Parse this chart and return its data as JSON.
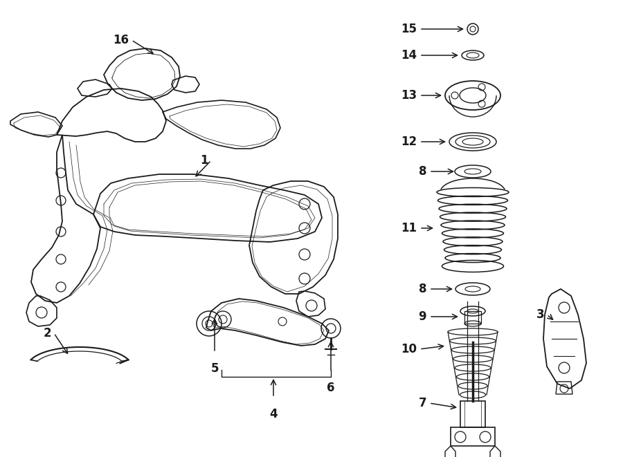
{
  "bg_color": "#ffffff",
  "line_color": "#1a1a1a",
  "fig_width": 9.0,
  "fig_height": 6.61,
  "dpi": 100,
  "label_fontsize": 12,
  "arrow_lw": 1.1
}
